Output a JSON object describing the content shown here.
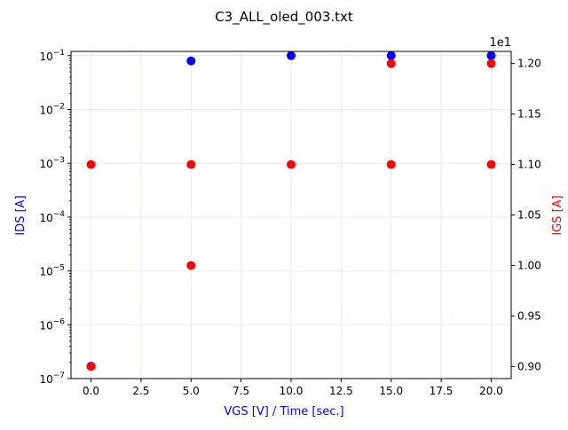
{
  "chart_data": {
    "type": "scatter",
    "title": "C3_ALL_oled_003.txt",
    "xlabel": "VGS [V] / Time [sec.]",
    "ylabel_left": "IDS [A]",
    "ylabel_right": "IGS [A]",
    "right_axis_offset_text": "1e1",
    "xlim": [
      -1,
      21
    ],
    "ylim_left": [
      1e-07,
      0.12
    ],
    "ylim_left_scale": "log",
    "ylim_right": [
      8.88,
      12.12
    ],
    "ylim_right_scale": "linear",
    "grid": true,
    "x_ticks": [
      "0.0",
      "2.5",
      "5.0",
      "7.5",
      "10.0",
      "12.5",
      "15.0",
      "17.5",
      "20.0"
    ],
    "x_tick_values": [
      0,
      2.5,
      5,
      7.5,
      10,
      12.5,
      15,
      17.5,
      20
    ],
    "left_ticks": [
      {
        "value": 1e-07,
        "base": "10",
        "exp": "−7"
      },
      {
        "value": 1e-06,
        "base": "10",
        "exp": "−6"
      },
      {
        "value": 1e-05,
        "base": "10",
        "exp": "−5"
      },
      {
        "value": 0.0001,
        "base": "10",
        "exp": "−4"
      },
      {
        "value": 0.001,
        "base": "10",
        "exp": "−3"
      },
      {
        "value": 0.01,
        "base": "10",
        "exp": "−2"
      },
      {
        "value": 0.1,
        "base": "10",
        "exp": "−1"
      }
    ],
    "right_ticks": [
      "0.90",
      "0.95",
      "1.00",
      "1.05",
      "1.10",
      "1.15",
      "1.20"
    ],
    "right_tick_values": [
      9.0,
      9.5,
      10.0,
      10.5,
      11.0,
      11.5,
      12.0
    ],
    "series": [
      {
        "axis": "left",
        "color": "#0000ff",
        "points": [
          [
            0,
            1.7e-07
          ],
          [
            5,
            0.08
          ],
          [
            10,
            0.1
          ],
          [
            15,
            0.1
          ],
          [
            20,
            0.1
          ]
        ]
      },
      {
        "axis": "right",
        "color": "#ff0000",
        "points": [
          [
            0,
            9.0
          ],
          [
            0,
            11.0
          ],
          [
            5,
            10.0
          ],
          [
            5,
            11.0
          ],
          [
            10,
            11.0
          ],
          [
            15,
            11.0
          ],
          [
            15,
            12.0
          ],
          [
            20,
            11.0
          ],
          [
            20,
            12.0
          ]
        ]
      }
    ],
    "colors": {
      "left_axis_label": "#0000ff",
      "right_axis_label": "#ff0000",
      "grid": "#e6e6ff"
    }
  }
}
